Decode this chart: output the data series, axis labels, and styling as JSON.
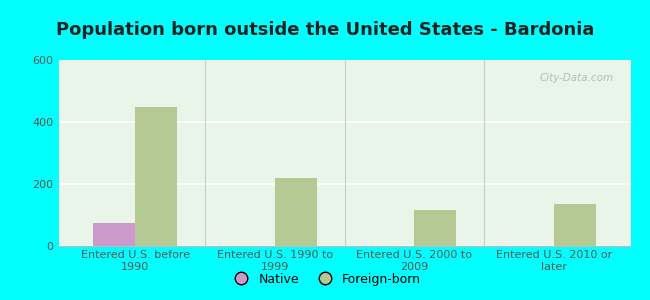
{
  "title": "Population born outside the United States - Bardonia",
  "categories": [
    "Entered U.S. before\n1990",
    "Entered U.S. 1990 to\n1999",
    "Entered U.S. 2000 to\n2009",
    "Entered U.S. 2010 or\nlater"
  ],
  "native_values": [
    75,
    0,
    0,
    0
  ],
  "foreign_values": [
    450,
    220,
    115,
    135
  ],
  "native_color": "#cc99cc",
  "foreign_color": "#b5c994",
  "background_color": "#00ffff",
  "plot_bg_color": "#e8f5e8",
  "ylim": [
    0,
    600
  ],
  "yticks": [
    0,
    200,
    400,
    600
  ],
  "bar_width": 0.3,
  "legend_native": "Native",
  "legend_foreign": "Foreign-born",
  "watermark": "City-Data.com",
  "title_fontsize": 13,
  "tick_fontsize": 8,
  "legend_fontsize": 9,
  "tick_color": "#555555"
}
